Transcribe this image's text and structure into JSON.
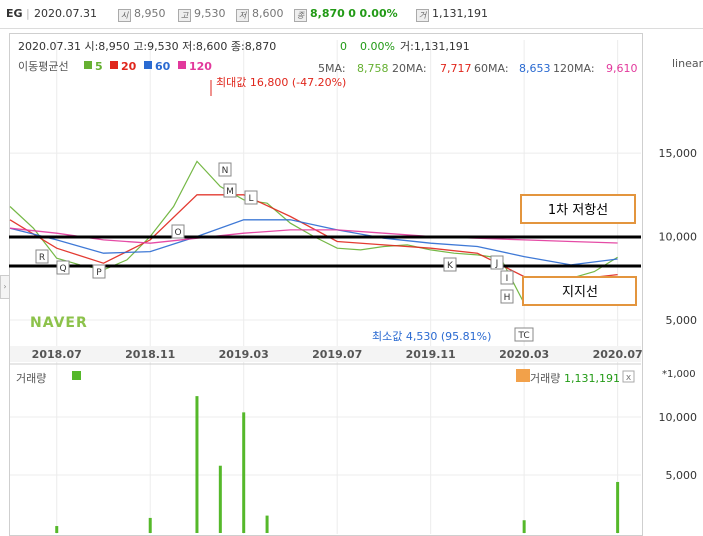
{
  "topbar": {
    "ticker": "EG",
    "date": "2020.07.31",
    "open_icon": "시",
    "open": "8,950",
    "high_icon": "고",
    "high": "9,530",
    "low_icon": "저",
    "low": "8,600",
    "close_icon": "종",
    "close": "8,870",
    "change": "0",
    "change_pct": "0.00%",
    "volume_icon": "거",
    "volume": "1,131,191"
  },
  "infoline": {
    "text": "2020.07.31 시:8,950 고:9,530 저:8,600 종:8,870",
    "change": "0",
    "change_pct": "0.00%",
    "volume_text": "거:1,131,191"
  },
  "legend": {
    "label": "이동평균선",
    "items": [
      {
        "label": "5",
        "color": "#66b032"
      },
      {
        "label": "20",
        "color": "#e0261c"
      },
      {
        "label": "60",
        "color": "#2a6ad1"
      },
      {
        "label": "120",
        "color": "#e2399c"
      }
    ]
  },
  "ma_values": [
    {
      "label": "5MA:",
      "value": "8,758",
      "color": "#66b032"
    },
    {
      "label": "20MA:",
      "value": "7,717",
      "color": "#e0261c"
    },
    {
      "label": "60MA:",
      "value": "8,653",
      "color": "#2a6ad1"
    },
    {
      "label": "120MA:",
      "value": "9,610",
      "color": "#e2399c"
    }
  ],
  "scale_mode": "linear",
  "watermark": "NAVER",
  "annotations": {
    "max_label": "최대값 16,800 (-47.20%)",
    "min_label": "최소값 4,530 (95.81%)",
    "resistance_label": "1차 저항선",
    "support_label": "지지선",
    "markers": [
      "R",
      "Q",
      "P",
      "O",
      "N",
      "M",
      "L",
      "K",
      "J",
      "I",
      "H",
      "TC"
    ]
  },
  "volume_panel": {
    "title": "거래량",
    "value_label": "거래량",
    "value": "1,131,191",
    "unit": "*1,000",
    "close_icon": "x"
  },
  "chart_data": [
    {
      "type": "line",
      "title": "",
      "x_ticks": [
        "2018.07",
        "2018.11",
        "2019.03",
        "2019.07",
        "2019.11",
        "2020.03",
        "2020.07"
      ],
      "y_ticks": [
        "5,000",
        "10,000",
        "15,000"
      ],
      "ylim": [
        3500,
        19500
      ],
      "series": [
        {
          "name": "5",
          "x": [
            "2018.05",
            "2018.06",
            "2018.07",
            "2018.08",
            "2018.09",
            "2018.10",
            "2018.11",
            "2018.12",
            "2019.01",
            "2019.02",
            "2019.03",
            "2019.04",
            "2019.05",
            "2019.06",
            "2019.07",
            "2019.08",
            "2019.09",
            "2019.10",
            "2019.11",
            "2019.12",
            "2020.01",
            "2020.02",
            "2020.03",
            "2020.04",
            "2020.05",
            "2020.06",
            "2020.07"
          ],
          "values": [
            11800,
            10500,
            8700,
            8300,
            8000,
            8600,
            10000,
            11800,
            14500,
            13000,
            12200,
            12000,
            10800,
            10000,
            9300,
            9200,
            9400,
            9500,
            9200,
            9000,
            8900,
            8700,
            6000,
            7300,
            7500,
            7900,
            8758
          ]
        },
        {
          "name": "20",
          "x": [
            "2018.05",
            "2018.07",
            "2018.09",
            "2018.11",
            "2019.01",
            "2019.03",
            "2019.05",
            "2019.07",
            "2019.09",
            "2019.11",
            "2020.01",
            "2020.03",
            "2020.05",
            "2020.07"
          ],
          "values": [
            11000,
            9300,
            8400,
            9800,
            12500,
            12500,
            11200,
            9700,
            9500,
            9300,
            9000,
            7600,
            7400,
            7717
          ]
        },
        {
          "name": "60",
          "x": [
            "2018.05",
            "2018.07",
            "2018.09",
            "2018.11",
            "2019.01",
            "2019.03",
            "2019.05",
            "2019.07",
            "2019.09",
            "2019.11",
            "2020.01",
            "2020.03",
            "2020.05",
            "2020.07"
          ],
          "values": [
            10500,
            9800,
            9000,
            9100,
            10000,
            11000,
            11000,
            10400,
            9900,
            9600,
            9400,
            8800,
            8300,
            8653
          ]
        },
        {
          "name": "120",
          "x": [
            "2018.05",
            "2018.07",
            "2018.09",
            "2018.11",
            "2019.01",
            "2019.03",
            "2019.05",
            "2019.07",
            "2019.09",
            "2019.11",
            "2020.01",
            "2020.03",
            "2020.05",
            "2020.07"
          ],
          "values": [
            10500,
            10200,
            9800,
            9600,
            9900,
            10200,
            10400,
            10400,
            10200,
            10000,
            9900,
            9800,
            9700,
            9610
          ]
        }
      ]
    },
    {
      "type": "bar",
      "title": "",
      "y_ticks": [
        "5,000",
        "10,000"
      ],
      "ylim": [
        0,
        12500
      ],
      "x": [
        "2018.07",
        "2018.11",
        "2019.01",
        "2019.02",
        "2019.03",
        "2019.04",
        "2020.03",
        "2020.07"
      ],
      "values": [
        600,
        1300,
        11800,
        5800,
        10400,
        1500,
        1100,
        4400
      ]
    }
  ]
}
